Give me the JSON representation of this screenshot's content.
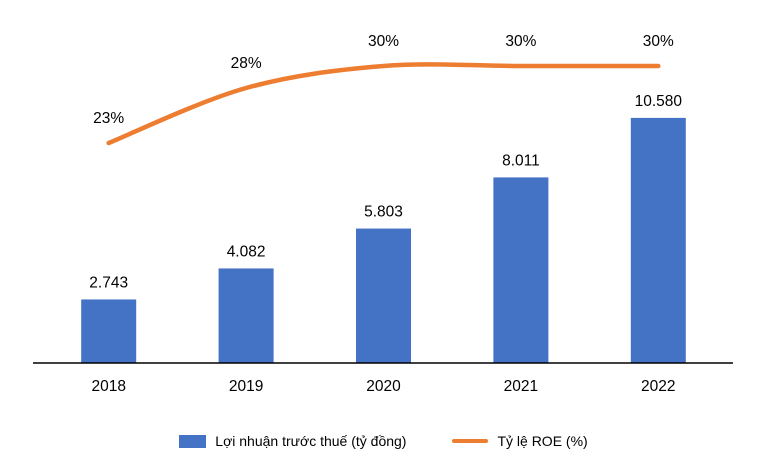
{
  "chart_data": {
    "type": "combo",
    "categories": [
      "2018",
      "2019",
      "2020",
      "2021",
      "2022"
    ],
    "series": [
      {
        "name": "Lợi nhuận trước thuế (tỷ đồng)",
        "type": "bar",
        "values": [
          2743,
          4082,
          5803,
          8011,
          10580
        ],
        "labels": [
          "2.743",
          "4.082",
          "5.803",
          "8.011",
          "10.580"
        ],
        "color": "#4472C4",
        "ylim": [
          0,
          12000
        ]
      },
      {
        "name": "Tỷ lệ ROE (%)",
        "type": "line",
        "values": [
          23,
          28,
          30,
          30,
          30
        ],
        "labels": [
          "23%",
          "28%",
          "30%",
          "30%",
          "30%"
        ],
        "color": "#ED7D31",
        "ylim": [
          3,
          34
        ]
      }
    ],
    "title": "",
    "xlabel": "",
    "ylabel": "",
    "grid": false,
    "legend_position": "bottom",
    "background": "#FFFFFF",
    "axis_color": "#000000",
    "text_color": "#000000"
  }
}
